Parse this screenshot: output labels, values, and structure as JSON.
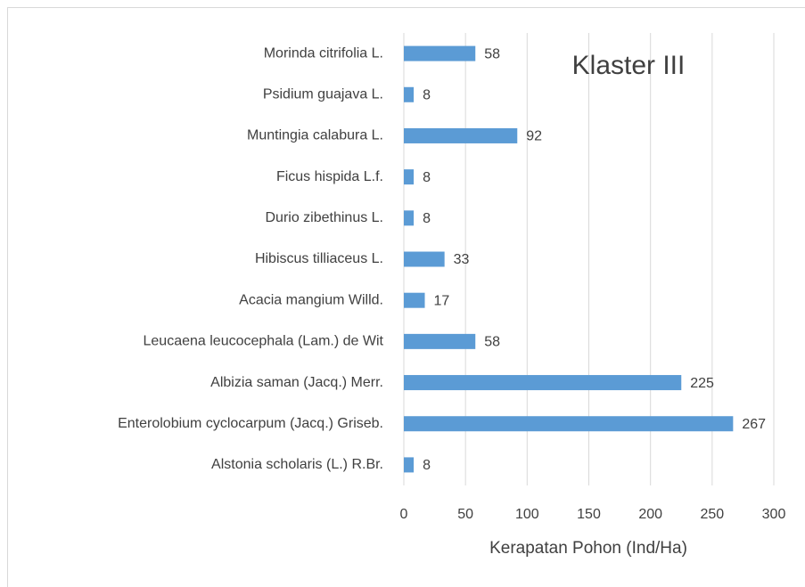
{
  "chart_data": {
    "type": "barh",
    "title": "Klaster III",
    "xlabel": "Kerapatan Pohon (Ind/Ha)",
    "categories": [
      "Morinda citrifolia L.",
      "Psidium guajava L.",
      "Muntingia calabura L.",
      "Ficus hispida L.f.",
      "Durio zibethinus L.",
      "Hibiscus tilliaceus L.",
      "Acacia mangium Willd.",
      "Leucaena leucocephala (Lam.) de Wit",
      "Albizia saman (Jacq.) Merr.",
      "Enterolobium cyclocarpum (Jacq.) Griseb.",
      "Alstonia scholaris (L.) R.Br."
    ],
    "values": [
      58,
      8,
      92,
      8,
      8,
      33,
      17,
      58,
      225,
      267,
      8
    ],
    "color": "#5b9bd5",
    "xlim": [
      0,
      300
    ],
    "xticks": [
      0,
      50,
      100,
      150,
      200,
      250,
      300
    ],
    "grid": true
  }
}
